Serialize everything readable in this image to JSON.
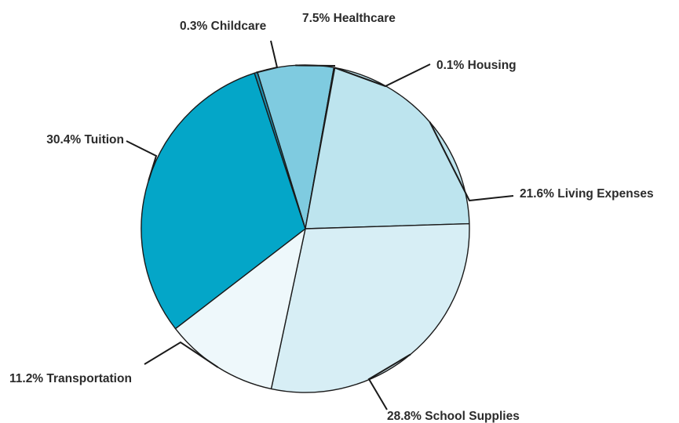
{
  "chart_data": {
    "type": "pie",
    "slices": [
      {
        "label": "Healthcare",
        "value": 7.5,
        "display": "7.5% Healthcare",
        "color": "#7fcbe0"
      },
      {
        "label": "Housing",
        "value": 0.1,
        "display": "0.1% Housing",
        "color": "#a8dbe9"
      },
      {
        "label": "Living Expenses",
        "value": 21.6,
        "display": "21.6% Living Expenses",
        "color": "#bde4ee"
      },
      {
        "label": "School Supplies",
        "value": 28.8,
        "display": "28.8% School Supplies",
        "color": "#d7eef5"
      },
      {
        "label": "Transportation",
        "value": 11.2,
        "display": "11.2% Transportation",
        "color": "#eef8fb"
      },
      {
        "label": "Tuition",
        "value": 30.4,
        "display": "30.4% Tuition",
        "color": "#04a6c8"
      },
      {
        "label": "Childcare",
        "value": 0.3,
        "display": "0.3% Childcare",
        "color": "#1d8fb0"
      }
    ],
    "legend": "none"
  }
}
